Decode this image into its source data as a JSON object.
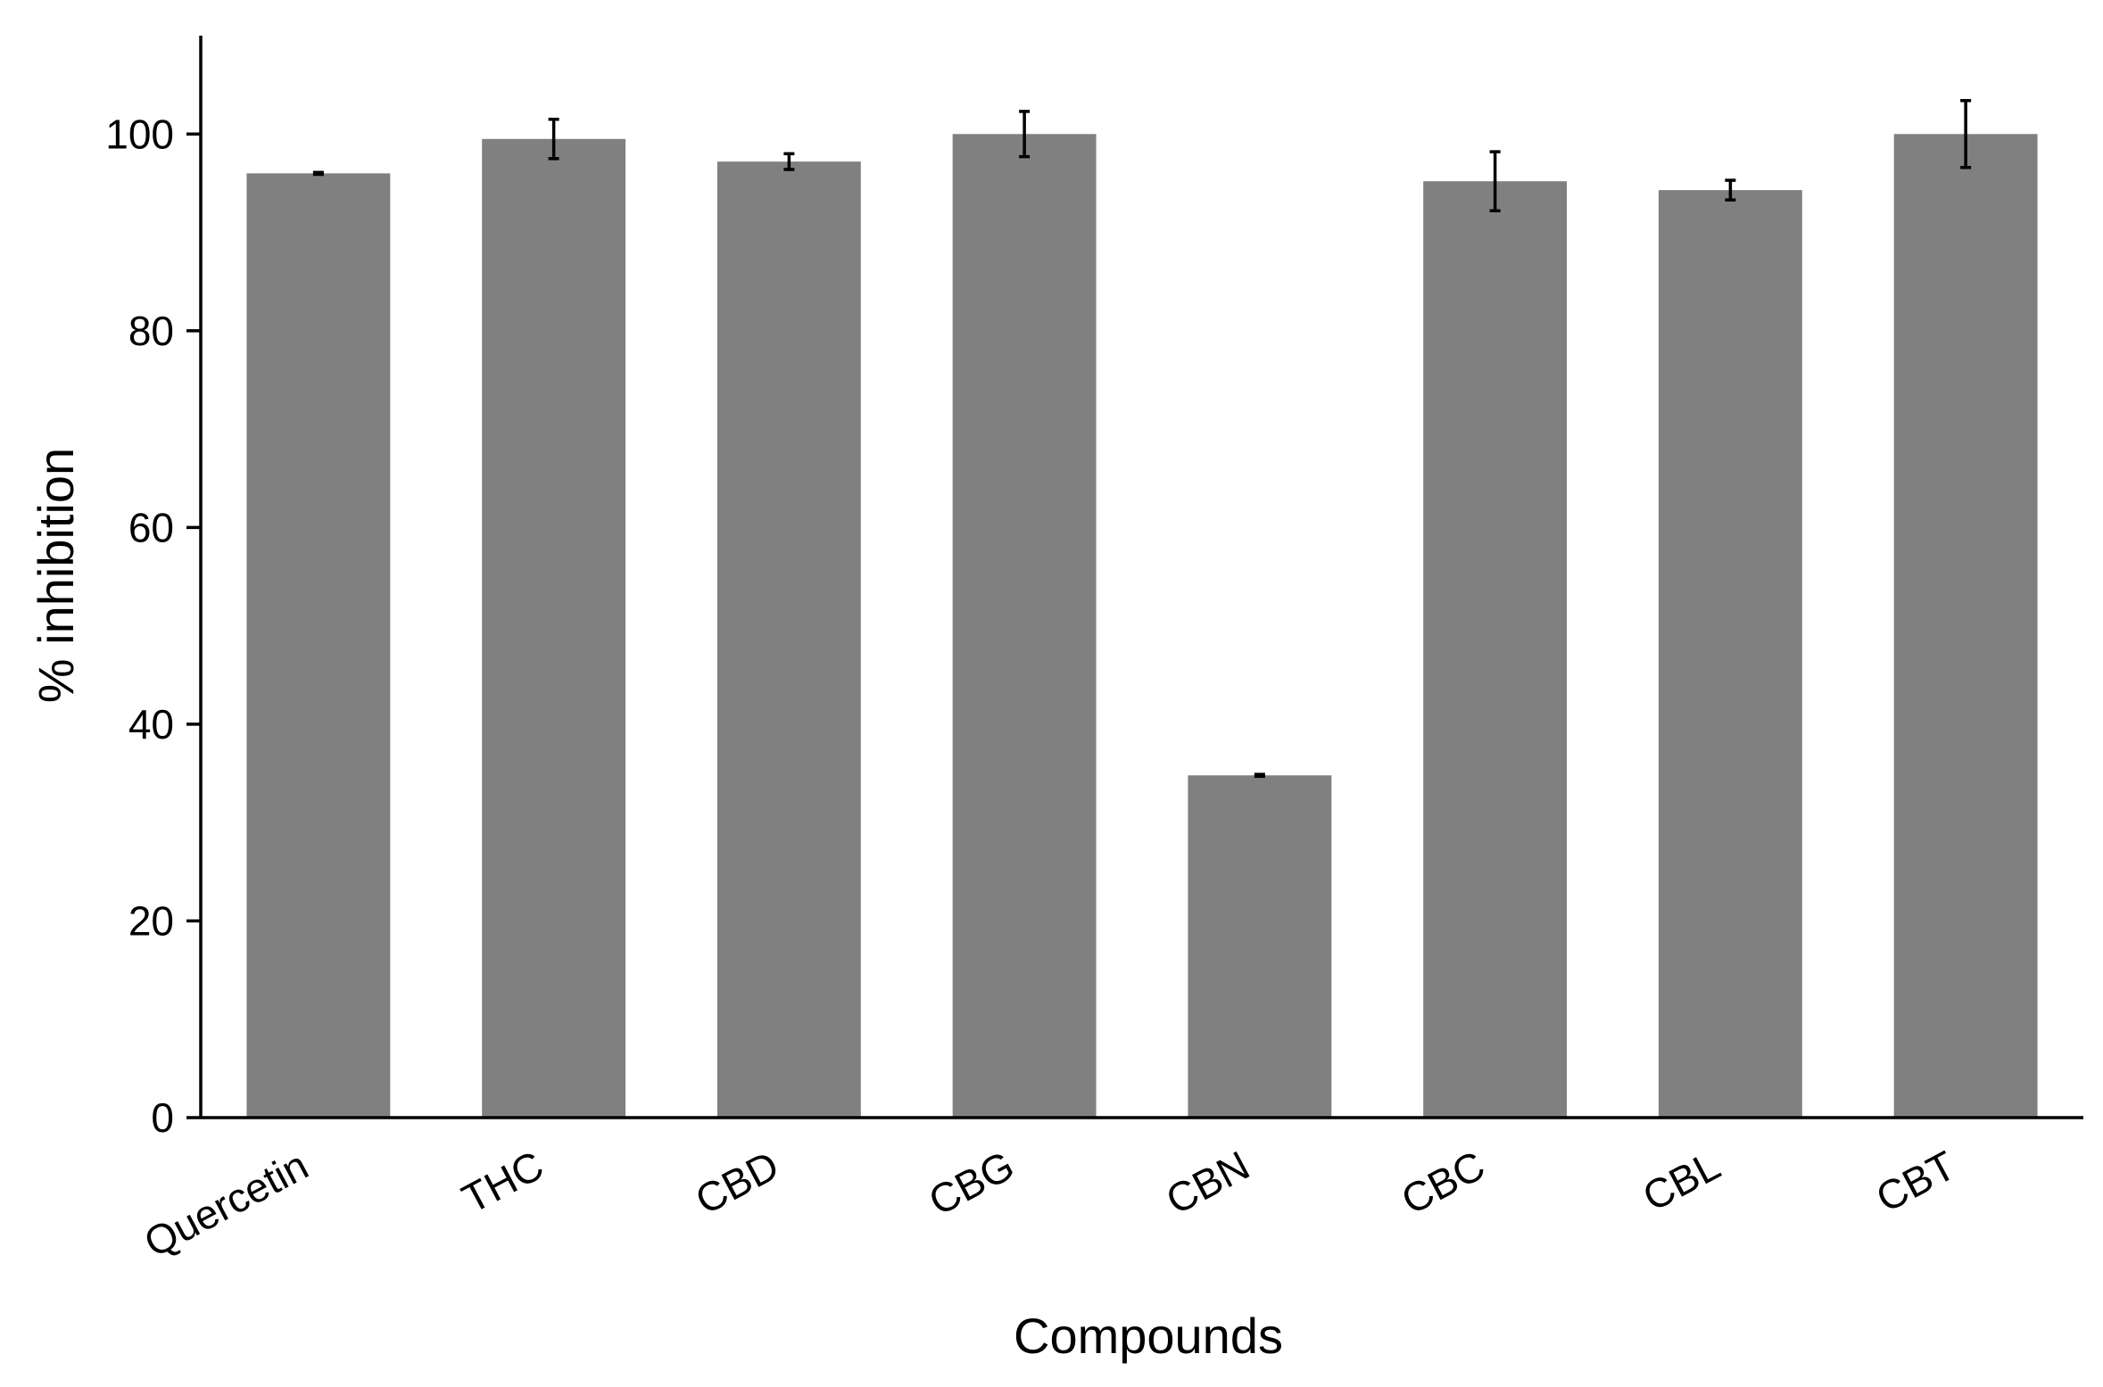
{
  "chart_data": {
    "type": "bar",
    "title": "",
    "xlabel": "Compounds",
    "ylabel": "% inhibition",
    "ylim": [
      0,
      110
    ],
    "yticks": [
      0,
      20,
      40,
      60,
      80,
      100
    ],
    "grid": false,
    "categories": [
      "Quercetin",
      "THC",
      "CBD",
      "CBG",
      "CBN",
      "CBC",
      "CBL",
      "CBT"
    ],
    "series": [
      {
        "values": [
          96.0,
          99.5,
          97.2,
          100.0,
          34.8,
          95.2,
          94.3,
          100.0
        ],
        "errors": [
          0.1,
          2.0,
          0.8,
          2.3,
          0.1,
          3.0,
          1.0,
          3.4
        ],
        "color": "#808080"
      }
    ]
  }
}
